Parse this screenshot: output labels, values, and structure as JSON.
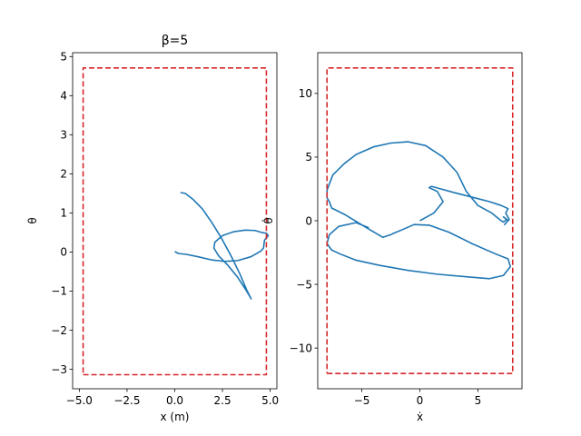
{
  "chart_data": [
    {
      "type": "line",
      "title": "β=5",
      "xlabel": "x (m)",
      "ylabel": "θ",
      "xlim": [
        -5.35,
        5.35
      ],
      "ylim": [
        -3.5,
        5.1
      ],
      "xticks": [
        -5.0,
        -2.5,
        0.0,
        2.5,
        5.0
      ],
      "xtick_labels": [
        "−5.0",
        "−2.5",
        "0.0",
        "2.5",
        "5.0"
      ],
      "yticks": [
        -3,
        -2,
        -1,
        0,
        1,
        2,
        3,
        4,
        5
      ],
      "ytick_labels": [
        "−3",
        "−2",
        "−1",
        "0",
        "1",
        "2",
        "3",
        "4",
        "5"
      ],
      "grid": false,
      "series": [
        {
          "color": "#1f77b4",
          "x": [
            0.3,
            0.55,
            0.95,
            1.45,
            1.95,
            2.45,
            2.95,
            3.4,
            3.75,
            3.95,
            4.0,
            3.95,
            3.7,
            3.3,
            2.8,
            2.3,
            2.05,
            2.1,
            2.5,
            3.1,
            3.7,
            4.2,
            4.55,
            4.8,
            4.9,
            4.7,
            4.65,
            4.5,
            4.0,
            3.3,
            2.6,
            1.9,
            1.2,
            0.6,
            0.2,
            0.0
          ],
          "y": [
            1.52,
            1.5,
            1.35,
            1.1,
            0.75,
            0.35,
            -0.1,
            -0.55,
            -0.95,
            -1.15,
            -1.2,
            -1.15,
            -0.95,
            -0.65,
            -0.35,
            -0.1,
            0.1,
            0.25,
            0.42,
            0.52,
            0.56,
            0.55,
            0.5,
            0.48,
            0.42,
            0.3,
            0.1,
            0.02,
            -0.12,
            -0.22,
            -0.24,
            -0.2,
            -0.12,
            -0.06,
            -0.04,
            0.01
          ]
        },
        {
          "color": "#d62728",
          "dashed": true,
          "x": [
            -4.8,
            4.8,
            4.8,
            -4.8,
            -4.8
          ],
          "y": [
            -3.14,
            -3.14,
            4.71,
            4.71,
            -3.14
          ]
        }
      ]
    },
    {
      "type": "line",
      "title": "",
      "xlabel": "ẋ",
      "ylabel": "θ̇",
      "xlim": [
        -8.8,
        8.8
      ],
      "ylim": [
        -13.2,
        13.2
      ],
      "xticks": [
        -5,
        0,
        5
      ],
      "xtick_labels": [
        "−5",
        "0",
        "5"
      ],
      "yticks": [
        -10,
        -5,
        0,
        5,
        10
      ],
      "ytick_labels": [
        "−10",
        "−5",
        "0",
        "5",
        "10"
      ],
      "grid": false,
      "series": [
        {
          "color": "#1f77b4",
          "x": [
            -4.4,
            -5.5,
            -7.0,
            -7.8,
            -8.0,
            -7.6,
            -6.9,
            -5.5,
            -3.5,
            -1.0,
            1.5,
            4.0,
            6.0,
            7.2,
            7.8,
            7.6,
            6.5,
            4.5,
            2.5,
            0.8,
            -0.5,
            -1.5,
            -2.3,
            -2.5,
            -3.2,
            -4.5,
            -6.5,
            -7.6,
            -7.8,
            -8.0,
            -8.0,
            -7.5,
            -6.5,
            -5.5,
            -4.0,
            -2.5,
            -1.0,
            0.5,
            2.0,
            3.2,
            4.0,
            5.0,
            6.2,
            7.0,
            7.2,
            7.5,
            7.2,
            7.6,
            7.3,
            7.7,
            7.4,
            7.6,
            7.0,
            6.0,
            4.5,
            3.0,
            1.8,
            1.0,
            0.8,
            1.5,
            2.0,
            1.2,
            0.4,
            0.0
          ],
          "y": [
            -0.55,
            -0.15,
            -0.45,
            -1.1,
            -1.8,
            -2.3,
            -2.6,
            -3.1,
            -3.5,
            -3.9,
            -4.2,
            -4.4,
            -4.55,
            -4.3,
            -3.6,
            -3.0,
            -2.6,
            -1.8,
            -0.9,
            -0.35,
            -0.3,
            -0.7,
            -1.0,
            -1.1,
            -1.3,
            -0.6,
            0.5,
            1.0,
            1.5,
            1.8,
            2.4,
            3.6,
            4.5,
            5.2,
            5.8,
            6.1,
            6.2,
            5.9,
            5.0,
            3.8,
            2.3,
            1.2,
            0.6,
            0.0,
            -0.1,
            0.1,
            0.3,
            0.0,
            -0.3,
            0.1,
            0.6,
            0.95,
            1.2,
            1.5,
            1.85,
            2.2,
            2.5,
            2.7,
            2.6,
            2.3,
            1.5,
            0.6,
            0.2,
            0.0
          ]
        },
        {
          "color": "#d62728",
          "dashed": true,
          "x": [
            -8.0,
            8.0,
            8.0,
            -8.0,
            -8.0
          ],
          "y": [
            -12.0,
            -12.0,
            12.0,
            12.0,
            -12.0
          ]
        }
      ]
    }
  ]
}
